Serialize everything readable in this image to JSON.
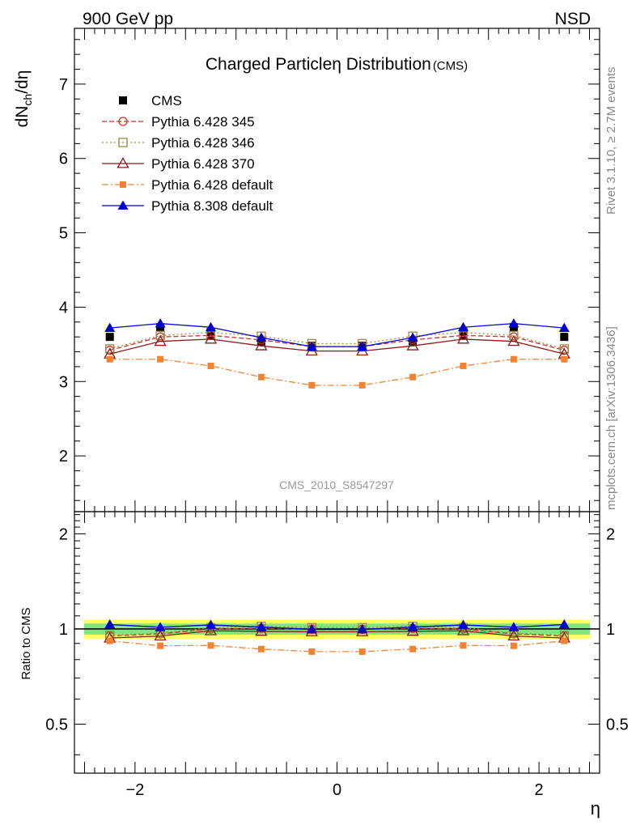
{
  "header": {
    "left": "900 GeV pp",
    "right": "NSD"
  },
  "side_labels": {
    "rivet": "Rivet 3.1.10, ≥ 2.7M events",
    "mcplots": "mcplots.cern.ch [arXiv:1306.3436]"
  },
  "watermark": "CMS_2010_S8547297",
  "colors": {
    "cms": "#000000",
    "p345": "#c0392b",
    "p346": "#a0884a",
    "p370": "#8b1a1a",
    "p6def": "#f58231",
    "p8def": "#0000cc",
    "band_inner": "#7fe57f",
    "band_outer": "#ffff66"
  },
  "chart_data": [
    {
      "type": "line",
      "title": "Charged Particleη Distribution",
      "title_suffix": "(CMS)",
      "ylabel": "dN",
      "ylabel_sub": "ch",
      "ylabel_tail": "/dη",
      "ylim": [
        1.25,
        7.75
      ],
      "yticks": [
        2,
        3,
        4,
        5,
        6,
        7
      ],
      "xlim": [
        -2.6,
        2.6
      ],
      "legend_position": "top-left",
      "x": [
        -2.25,
        -1.75,
        -1.25,
        -0.75,
        -0.25,
        0.25,
        0.75,
        1.25,
        1.75,
        2.25
      ],
      "series": [
        {
          "name": "CMS",
          "key": "cms",
          "style": "data",
          "values": [
            3.6,
            3.73,
            3.62,
            3.54,
            3.48,
            3.48,
            3.54,
            3.62,
            3.73,
            3.6
          ]
        },
        {
          "name": "Pythia 6.428 345",
          "key": "p345",
          "style": "dashed-circle",
          "values": [
            3.42,
            3.6,
            3.62,
            3.56,
            3.47,
            3.47,
            3.56,
            3.62,
            3.6,
            3.42
          ]
        },
        {
          "name": "Pythia 6.428 346",
          "key": "p346",
          "style": "dotted-square",
          "values": [
            3.44,
            3.62,
            3.66,
            3.61,
            3.51,
            3.51,
            3.61,
            3.66,
            3.62,
            3.44
          ]
        },
        {
          "name": "Pythia 6.428 370",
          "key": "p370",
          "style": "solid-triangle-open",
          "values": [
            3.37,
            3.54,
            3.57,
            3.48,
            3.41,
            3.41,
            3.48,
            3.57,
            3.54,
            3.37
          ]
        },
        {
          "name": "Pythia 6.428 default",
          "key": "p6def",
          "style": "dashdot-square",
          "values": [
            3.3,
            3.3,
            3.21,
            3.06,
            2.95,
            2.95,
            3.06,
            3.21,
            3.3,
            3.3
          ]
        },
        {
          "name": "Pythia 8.308 default",
          "key": "p8def",
          "style": "solid-triangle",
          "values": [
            3.72,
            3.78,
            3.73,
            3.59,
            3.47,
            3.47,
            3.59,
            3.73,
            3.78,
            3.72
          ]
        }
      ]
    },
    {
      "type": "line",
      "ylabel": "Ratio to CMS",
      "xlabel": "η",
      "ylim": [
        0.35,
        2.35
      ],
      "yticks": [
        0.5,
        1,
        2
      ],
      "ytick_labels": [
        "0.5",
        "1",
        "2"
      ],
      "xlim": [
        -2.6,
        2.6
      ],
      "xticks": [
        -2,
        0,
        2
      ],
      "xtick_labels": [
        "−2",
        "0",
        "2"
      ],
      "x": [
        -2.25,
        -1.75,
        -1.25,
        -0.75,
        -0.25,
        0.25,
        0.75,
        1.25,
        1.75,
        2.25
      ],
      "band_inner": [
        0.96,
        1.04
      ],
      "band_outer": [
        0.93,
        1.07
      ],
      "series": [
        {
          "name": "Pythia 6.428 345",
          "key": "p345",
          "style": "dashed-circle",
          "values": [
            0.95,
            0.965,
            1.0,
            1.005,
            0.997,
            0.997,
            1.005,
            1.0,
            0.965,
            0.95
          ]
        },
        {
          "name": "Pythia 6.428 346",
          "key": "p346",
          "style": "dotted-square",
          "values": [
            0.955,
            0.97,
            1.01,
            1.02,
            1.01,
            1.01,
            1.02,
            1.01,
            0.97,
            0.955
          ]
        },
        {
          "name": "Pythia 6.428 370",
          "key": "p370",
          "style": "solid-triangle-open",
          "values": [
            0.936,
            0.95,
            0.987,
            0.983,
            0.98,
            0.98,
            0.983,
            0.987,
            0.95,
            0.936
          ]
        },
        {
          "name": "Pythia 6.428 default",
          "key": "p6def",
          "style": "dashdot-square",
          "values": [
            0.917,
            0.885,
            0.887,
            0.864,
            0.848,
            0.848,
            0.864,
            0.887,
            0.885,
            0.917
          ]
        },
        {
          "name": "Pythia 8.308 default",
          "key": "p8def",
          "style": "solid-triangle",
          "values": [
            1.033,
            1.013,
            1.03,
            1.014,
            0.997,
            0.997,
            1.014,
            1.03,
            1.013,
            1.033
          ]
        }
      ]
    }
  ]
}
